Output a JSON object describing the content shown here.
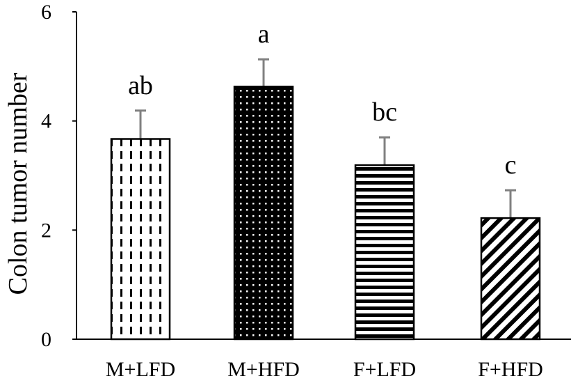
{
  "chart_data": {
    "type": "bar",
    "title": "",
    "xlabel": "",
    "ylabel": "Colon tumor number",
    "ylim": [
      0,
      6
    ],
    "yticks": [
      "0",
      "2",
      "4",
      "6"
    ],
    "grid": false,
    "categories": [
      "M+LFD",
      "M+HFD",
      "F+LFD",
      "F+HFD"
    ],
    "values": [
      3.67,
      4.63,
      3.19,
      2.22
    ],
    "errors": [
      0.52,
      0.5,
      0.51,
      0.51
    ],
    "significance": [
      "ab",
      "a",
      "bc",
      "c"
    ],
    "bar_patterns": [
      "dashed-vertical",
      "dotted-dark",
      "horizontal-stripes",
      "diagonal-stripes"
    ],
    "colors": {
      "bar_fill": "#000000",
      "background": "#ffffff",
      "error_bar": "#808080",
      "axis": "#000000"
    }
  }
}
